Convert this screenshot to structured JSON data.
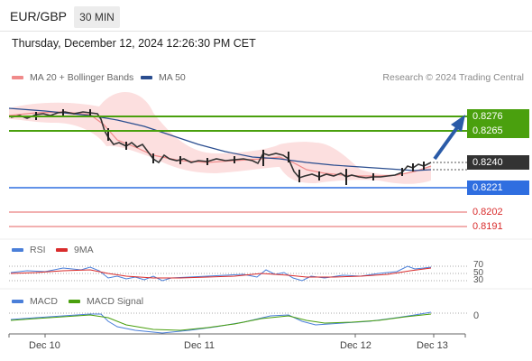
{
  "header": {
    "pair": "EUR/GBP",
    "timeframe": "30 MIN",
    "timestamp": "Thursday, December 12, 2024 12:26:30 PM CET"
  },
  "legend": {
    "bollinger": "MA 20 + Bollinger Bands",
    "ma50": "MA 50",
    "credit": "Research © 2024 Trading Central"
  },
  "price_levels": {
    "r2": "0.8276",
    "r1": "0.8265",
    "last": "0.8240",
    "pivot": "0.8221",
    "s1": "0.8202",
    "s2": "0.8191"
  },
  "rsi_panel": {
    "rsi_label": "RSI",
    "ma_label": "9MA",
    "level_70": "70",
    "level_50": "50",
    "level_30": "30"
  },
  "macd_panel": {
    "macd_label": "MACD",
    "signal_label": "MACD Signal",
    "zero": "0"
  },
  "x_axis": {
    "dec10": "Dec 10",
    "dec11": "Dec 11",
    "dec12": "Dec 12",
    "dec13": "Dec 13"
  },
  "colors": {
    "green": "#4aa00e",
    "blue": "#2f6ee0",
    "red": "#d92c2c",
    "ma20": "#f08a8a",
    "ma50": "#2a4d8f",
    "arrow": "#2a5ba8"
  }
}
